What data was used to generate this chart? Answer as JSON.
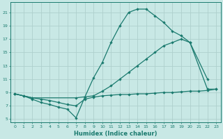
{
  "line1_x": [
    0,
    1,
    2,
    3,
    4,
    5,
    6,
    7,
    8,
    9,
    10,
    11,
    12,
    13,
    14,
    15,
    16,
    17,
    18,
    19,
    20,
    22
  ],
  "line1_y": [
    8.8,
    8.5,
    8.0,
    7.5,
    7.2,
    6.8,
    6.5,
    5.2,
    8.3,
    11.2,
    13.5,
    16.5,
    19.0,
    21.0,
    21.5,
    21.5,
    20.5,
    19.5,
    18.2,
    17.5,
    16.5,
    11.0
  ],
  "line2_x": [
    0,
    2,
    7,
    9,
    10,
    11,
    12,
    13,
    14,
    15,
    16,
    17,
    18,
    19,
    20,
    22,
    23
  ],
  "line2_y": [
    8.8,
    8.2,
    8.2,
    8.5,
    9.2,
    10.0,
    11.0,
    12.0,
    13.0,
    14.0,
    15.0,
    16.0,
    16.5,
    17.0,
    16.5,
    9.5,
    9.5
  ],
  "line3_x": [
    0,
    1,
    2,
    3,
    4,
    5,
    6,
    7,
    8,
    9,
    10,
    11,
    12,
    13,
    14,
    15,
    16,
    17,
    18,
    19,
    20,
    21,
    22,
    23
  ],
  "line3_y": [
    8.8,
    8.5,
    8.2,
    8.0,
    7.8,
    7.5,
    7.2,
    7.0,
    8.0,
    8.3,
    8.5,
    8.6,
    8.7,
    8.7,
    8.8,
    8.8,
    8.9,
    9.0,
    9.0,
    9.1,
    9.2,
    9.2,
    9.3,
    9.5
  ],
  "color": "#1a7a6e",
  "bg_color": "#c8e8e5",
  "grid_color": "#aed0cd",
  "xlabel": "Humidex (Indice chaleur)",
  "ylabel_ticks": [
    5,
    7,
    9,
    11,
    13,
    15,
    17,
    19,
    21
  ],
  "xlim": [
    -0.5,
    23.5
  ],
  "ylim": [
    4.5,
    22.5
  ],
  "xticks": [
    0,
    1,
    2,
    3,
    4,
    5,
    6,
    7,
    8,
    9,
    10,
    11,
    12,
    13,
    14,
    15,
    16,
    17,
    18,
    19,
    20,
    21,
    22,
    23
  ]
}
